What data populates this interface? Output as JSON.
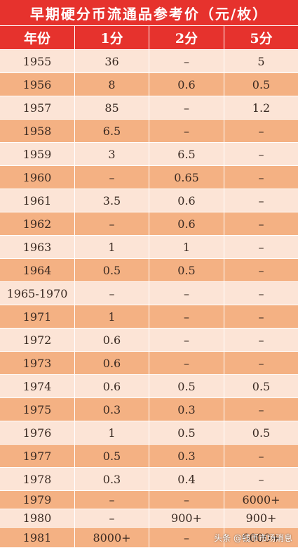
{
  "title": "早期硬分币流通品参考价（元/枚）",
  "headers": [
    "年份",
    "1分",
    "2分",
    "5分"
  ],
  "rows": [
    [
      "1955",
      "36",
      "–",
      "5"
    ],
    [
      "1956",
      "8",
      "0.6",
      "0.5"
    ],
    [
      "1957",
      "85",
      "–",
      "1.2"
    ],
    [
      "1958",
      "6.5",
      "–",
      "–"
    ],
    [
      "1959",
      "3",
      "6.5",
      "–"
    ],
    [
      "1960",
      "–",
      "0.65",
      "–"
    ],
    [
      "1961",
      "3.5",
      "0.6",
      "–"
    ],
    [
      "1962",
      "–",
      "0.6",
      "–"
    ],
    [
      "1963",
      "1",
      "1",
      "–"
    ],
    [
      "1964",
      "0.5",
      "0.5",
      "–"
    ],
    [
      "1965-1970",
      "–",
      "–",
      "–"
    ],
    [
      "1971",
      "1",
      "–",
      "–"
    ],
    [
      "1972",
      "0.6",
      "–",
      "–"
    ],
    [
      "1973",
      "0.6",
      "–",
      "–"
    ],
    [
      "1974",
      "0.6",
      "0.5",
      "0.5"
    ],
    [
      "1975",
      "0.3",
      "0.3",
      "–"
    ],
    [
      "1976",
      "1",
      "0.5",
      "0.5"
    ],
    [
      "1977",
      "0.5",
      "0.3",
      "–"
    ],
    [
      "1978",
      "0.3",
      "0.4",
      "–"
    ],
    [
      "1979",
      "–",
      "–",
      "6000+"
    ],
    [
      "1980",
      "–",
      "900+",
      "900+"
    ],
    [
      "1981",
      "8000+",
      "–",
      "6000+"
    ]
  ],
  "colors": {
    "header": "#e6322d",
    "row_light": "#fce4d6",
    "row_dark": "#f4b183"
  },
  "watermark": "头条 @钱币市场消息"
}
